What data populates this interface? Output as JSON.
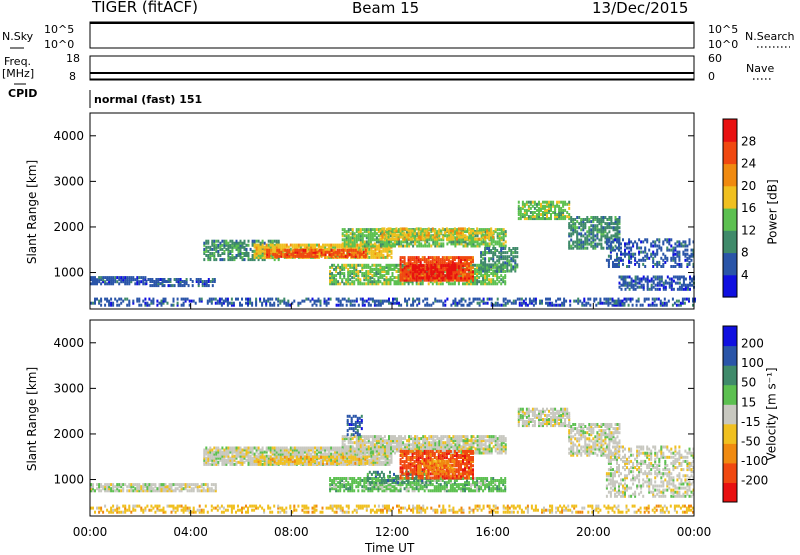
{
  "header": {
    "radar": "TIGER (fitACF)",
    "beam": "Beam 15",
    "date": "13/Dec/2015"
  },
  "strips": {
    "nsky_label": "N.Sky",
    "nsky_ticks": [
      "10^5",
      "10^0"
    ],
    "nsearch_label": "N.Search",
    "nsearch_ticks": [
      "10^5",
      "10^0"
    ],
    "freq_label": "Freq.",
    "freq_unit": "[MHz]",
    "freq_ticks": [
      "18",
      "8"
    ],
    "nave_label": "Nave",
    "nave_ticks": [
      "60",
      "0"
    ],
    "cpid_label": "CPID",
    "cpid_value": "normal (fast) 151"
  },
  "colors": {
    "power": [
      "#1010e0",
      "#2a55a8",
      "#3f8a6a",
      "#5cc050",
      "#f0c020",
      "#f08a10",
      "#f04810",
      "#e81010"
    ],
    "velocity": [
      "#e81010",
      "#f04810",
      "#f08a10",
      "#f0c020",
      "#c8c8c0",
      "#5cc050",
      "#3f8a6a",
      "#2a55a8",
      "#1010e0"
    ]
  },
  "chart_data": [
    {
      "type": "heatmap",
      "name": "power",
      "ylabel": "Slant Range [km]",
      "ylim": [
        200,
        4500
      ],
      "y_ticks": [
        1000,
        2000,
        3000,
        4000
      ],
      "xlim": [
        0,
        24
      ],
      "x_ticks": [
        "00:00",
        "04:00",
        "08:00",
        "12:00",
        "16:00",
        "20:00",
        "00:00"
      ],
      "colorbar_label": "Power [dB]",
      "colorbar_ticks": [
        "4",
        "8",
        "12",
        "16",
        "20",
        "24",
        "28"
      ],
      "bands": [
        {
          "t0": 0.0,
          "t1": 24.0,
          "r0": 250,
          "r1": 420,
          "c": 1,
          "d": 0.45
        },
        {
          "t0": 0.0,
          "t1": 2.2,
          "r0": 720,
          "r1": 900,
          "c": 1,
          "d": 0.85
        },
        {
          "t0": 2.2,
          "t1": 5.0,
          "r0": 680,
          "r1": 820,
          "c": 1,
          "d": 0.6
        },
        {
          "t0": 4.5,
          "t1": 7.5,
          "r0": 1250,
          "r1": 1700,
          "c": 2,
          "d": 0.7
        },
        {
          "t0": 6.5,
          "t1": 12.0,
          "r0": 1300,
          "r1": 1600,
          "c": 4,
          "d": 0.85
        },
        {
          "t0": 7.0,
          "t1": 11.0,
          "r0": 1320,
          "r1": 1500,
          "c": 6,
          "d": 0.75
        },
        {
          "t0": 10.0,
          "t1": 16.5,
          "r0": 1550,
          "r1": 1950,
          "c": 3,
          "d": 0.75
        },
        {
          "t0": 11.5,
          "t1": 16.0,
          "r0": 1700,
          "r1": 1950,
          "c": 4,
          "d": 0.5
        },
        {
          "t0": 9.5,
          "t1": 16.5,
          "r0": 720,
          "r1": 1150,
          "c": 3,
          "d": 0.7
        },
        {
          "t0": 12.3,
          "t1": 15.2,
          "r0": 800,
          "r1": 1300,
          "c": 6,
          "d": 0.85
        },
        {
          "t0": 12.8,
          "t1": 14.5,
          "r0": 850,
          "r1": 1150,
          "c": 7,
          "d": 0.7
        },
        {
          "t0": 15.5,
          "t1": 17.0,
          "r0": 1000,
          "r1": 1500,
          "c": 2,
          "d": 0.6
        },
        {
          "t0": 17.0,
          "t1": 19.0,
          "r0": 2150,
          "r1": 2550,
          "c": 3,
          "d": 0.7
        },
        {
          "t0": 19.0,
          "t1": 21.0,
          "r0": 1500,
          "r1": 2200,
          "c": 2,
          "d": 0.65
        },
        {
          "t0": 20.5,
          "t1": 24.0,
          "r0": 1100,
          "r1": 1700,
          "c": 1,
          "d": 0.4
        },
        {
          "t0": 21.0,
          "t1": 24.0,
          "r0": 600,
          "r1": 900,
          "c": 1,
          "d": 0.6
        }
      ]
    },
    {
      "type": "heatmap",
      "name": "velocity",
      "ylabel": "Slant Range [km]",
      "ylim": [
        200,
        4500
      ],
      "y_ticks": [
        1000,
        2000,
        3000,
        4000
      ],
      "xlim": [
        0,
        24
      ],
      "x_ticks": [
        "00:00",
        "04:00",
        "08:00",
        "12:00",
        "16:00",
        "20:00",
        "00:00"
      ],
      "xlabel": "Time UT",
      "colorbar_label": "Velocity [m s⁻¹]",
      "colorbar_ticks": [
        "200",
        "100",
        "50",
        "15",
        "-15",
        "-50",
        "-100",
        "-200"
      ],
      "bands": [
        {
          "t0": 0.0,
          "t1": 24.0,
          "r0": 250,
          "r1": 420,
          "c": 3,
          "d": 0.45
        },
        {
          "t0": 0.0,
          "t1": 5.0,
          "r0": 720,
          "r1": 900,
          "c": 4,
          "d": 0.8
        },
        {
          "t0": 4.5,
          "t1": 12.0,
          "r0": 1300,
          "r1": 1700,
          "c": 4,
          "d": 0.85
        },
        {
          "t0": 6.5,
          "t1": 11.0,
          "r0": 1320,
          "r1": 1500,
          "c": 3,
          "d": 0.6
        },
        {
          "t0": 10.0,
          "t1": 16.5,
          "r0": 1550,
          "r1": 1950,
          "c": 4,
          "d": 0.8
        },
        {
          "t0": 9.5,
          "t1": 16.5,
          "r0": 720,
          "r1": 1000,
          "c": 5,
          "d": 0.7
        },
        {
          "t0": 11.0,
          "t1": 13.5,
          "r0": 900,
          "r1": 1150,
          "c": 6,
          "d": 0.5
        },
        {
          "t0": 12.3,
          "t1": 15.2,
          "r0": 1000,
          "r1": 1600,
          "c": 1,
          "d": 0.8
        },
        {
          "t0": 13.0,
          "t1": 14.5,
          "r0": 1100,
          "r1": 1400,
          "c": 2,
          "d": 0.6
        },
        {
          "t0": 17.0,
          "t1": 19.0,
          "r0": 2150,
          "r1": 2550,
          "c": 4,
          "d": 0.75
        },
        {
          "t0": 19.0,
          "t1": 21.0,
          "r0": 1500,
          "r1": 2200,
          "c": 4,
          "d": 0.65
        },
        {
          "t0": 20.5,
          "t1": 24.0,
          "r0": 600,
          "r1": 1700,
          "c": 4,
          "d": 0.45
        },
        {
          "t0": 10.2,
          "t1": 10.8,
          "r0": 1950,
          "r1": 2400,
          "c": 7,
          "d": 0.5
        }
      ]
    }
  ]
}
